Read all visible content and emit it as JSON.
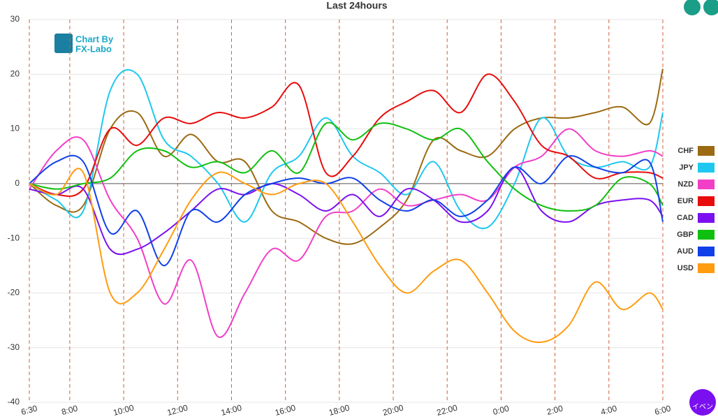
{
  "chart_data": {
    "type": "line",
    "title": "Last 24hours",
    "watermark": [
      "Chart By",
      "FX-Labo"
    ],
    "event_button": "イベン",
    "x": [
      0,
      1,
      2,
      3,
      4,
      5,
      6,
      7,
      8,
      9,
      10,
      11,
      12,
      13,
      14,
      15,
      16,
      17,
      18,
      19,
      20,
      21,
      22,
      23,
      23.5
    ],
    "xlim": [
      0,
      23.5
    ],
    "xticks": [
      {
        "value": 0,
        "label": "6:30"
      },
      {
        "value": 1.5,
        "label": "8:00"
      },
      {
        "value": 3.5,
        "label": "10:00"
      },
      {
        "value": 5.5,
        "label": "12:00"
      },
      {
        "value": 7.5,
        "label": "14:00"
      },
      {
        "value": 9.5,
        "label": "16:00"
      },
      {
        "value": 11.5,
        "label": "18:00"
      },
      {
        "value": 13.5,
        "label": "20:00"
      },
      {
        "value": 15.5,
        "label": "22:00"
      },
      {
        "value": 17.5,
        "label": "0:00"
      },
      {
        "value": 19.5,
        "label": "2:00"
      },
      {
        "value": 21.5,
        "label": "4:00"
      },
      {
        "value": 23.5,
        "label": "6:00"
      }
    ],
    "ylim": [
      -40,
      30
    ],
    "yticks": [
      30,
      20,
      10,
      0,
      -10,
      -20,
      -30,
      -40
    ],
    "grid": true,
    "legend": "right",
    "series": [
      {
        "name": "CHF",
        "color": "#9b6a12",
        "values": [
          0,
          -4,
          -4,
          10,
          13,
          5,
          9,
          4,
          4,
          -5,
          -7,
          -10,
          -11,
          -8,
          -3,
          8,
          6,
          5,
          10,
          12,
          12,
          13,
          14,
          11,
          21
        ]
      },
      {
        "name": "JPY",
        "color": "#1ec8f0",
        "values": [
          0,
          -3,
          -5,
          17,
          20,
          8,
          5,
          0,
          -7,
          2,
          5,
          12,
          5,
          2,
          -2,
          4,
          -5,
          -8,
          0,
          12,
          5,
          3,
          4,
          3,
          13
        ]
      },
      {
        "name": "NZD",
        "color": "#f23fc8",
        "values": [
          -1,
          6,
          8,
          -3,
          -10,
          -22,
          -14,
          -28,
          -20,
          -12,
          -14,
          -6,
          -5,
          -1,
          -4,
          -3,
          -2,
          -3,
          3,
          5,
          10,
          6,
          5,
          6,
          5
        ]
      },
      {
        "name": "EUR",
        "color": "#e80c0c",
        "values": [
          0,
          -2,
          -1,
          10,
          7,
          12,
          11,
          13,
          12,
          14,
          18,
          2,
          5,
          12,
          15,
          17,
          13,
          20,
          15,
          7,
          5,
          1,
          2,
          2,
          1
        ]
      },
      {
        "name": "CAD",
        "color": "#7a10f0",
        "values": [
          -1,
          -2,
          -1,
          -12,
          -12,
          -9,
          -5,
          -1,
          -2,
          0,
          -2,
          -5,
          -2,
          -6,
          -1,
          -3,
          -7,
          -5,
          3,
          -5,
          -7,
          -4,
          -3,
          -3,
          -6
        ]
      },
      {
        "name": "GBP",
        "color": "#10c010",
        "values": [
          0,
          -1,
          0,
          1,
          6,
          6,
          3,
          4,
          2,
          6,
          2,
          11,
          8,
          11,
          10,
          8,
          10,
          4,
          -1,
          -4,
          -5,
          -4,
          1,
          0,
          -4
        ]
      },
      {
        "name": "AUD",
        "color": "#1040e8",
        "values": [
          0,
          4,
          4,
          -9,
          -5,
          -15,
          -5,
          -7,
          -2,
          0,
          1,
          0,
          1,
          -3,
          -5,
          -3,
          -6,
          -3,
          3,
          0,
          5,
          3,
          2,
          4,
          -7
        ]
      },
      {
        "name": "USD",
        "color": "#ff9c10",
        "values": [
          0,
          -2,
          2,
          -20,
          -20,
          -12,
          -3,
          2,
          0,
          -2,
          0,
          0,
          -7,
          -15,
          -20,
          -16,
          -14,
          -20,
          -27,
          -29,
          -26,
          -18,
          -23,
          -20,
          -23
        ]
      }
    ]
  }
}
